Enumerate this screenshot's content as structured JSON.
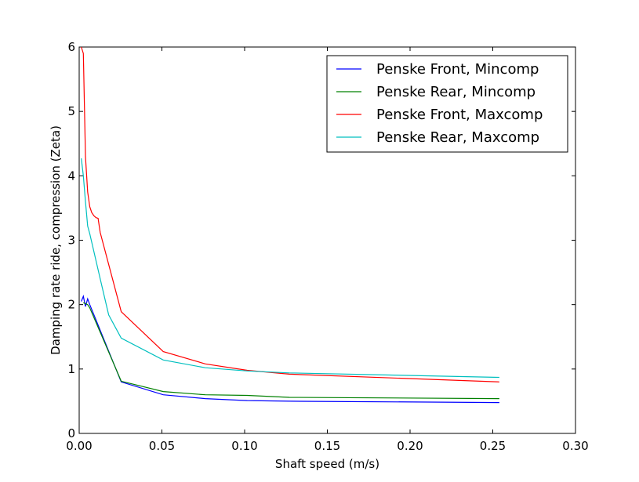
{
  "chart_data": {
    "type": "line",
    "xlabel": "Shaft speed (m/s)",
    "ylabel": "Damping rate ride, compression (Zeta)",
    "xlim": [
      0,
      0.3
    ],
    "ylim": [
      0,
      6
    ],
    "xticks": [
      "0.00",
      "0.05",
      "0.10",
      "0.15",
      "0.20",
      "0.25",
      "0.30"
    ],
    "xtick_values": [
      0,
      0.05,
      0.1,
      0.15,
      0.2,
      0.25,
      0.3
    ],
    "yticks": [
      "0",
      "1",
      "2",
      "3",
      "4",
      "5",
      "6"
    ],
    "ytick_values": [
      0,
      1,
      2,
      3,
      4,
      5,
      6
    ],
    "grid": false,
    "legend_position": "top-right",
    "series": [
      {
        "name": "Penske Front, Mincomp",
        "color": "#0000ff",
        "x": [
          0.0013,
          0.0025,
          0.0038,
          0.0051,
          0.0064,
          0.0254,
          0.0508,
          0.0762,
          0.1016,
          0.127,
          0.254
        ],
        "y": [
          2.05,
          2.13,
          1.97,
          2.09,
          2.0,
          0.8,
          0.6,
          0.54,
          0.51,
          0.5,
          0.48
        ]
      },
      {
        "name": "Penske Rear, Mincomp",
        "color": "#008000",
        "x": [
          0.0025,
          0.0051,
          0.0064,
          0.0254,
          0.0508,
          0.0762,
          0.1016,
          0.127,
          0.254
        ],
        "y": [
          2.03,
          2.0,
          1.95,
          0.81,
          0.65,
          0.6,
          0.59,
          0.56,
          0.54
        ]
      },
      {
        "name": "Penske Front, Maxcomp",
        "color": "#ff0000",
        "x": [
          0.0013,
          0.0025,
          0.0038,
          0.0051,
          0.0064,
          0.0076,
          0.0089,
          0.0102,
          0.0114,
          0.0127,
          0.0254,
          0.0508,
          0.0762,
          0.1016,
          0.127,
          0.254
        ],
        "y": [
          6.0,
          5.9,
          4.3,
          3.75,
          3.52,
          3.43,
          3.38,
          3.35,
          3.34,
          3.12,
          1.89,
          1.27,
          1.08,
          0.98,
          0.92,
          0.8
        ]
      },
      {
        "name": "Penske Rear, Maxcomp",
        "color": "#00bfbf",
        "x": [
          0.0013,
          0.0025,
          0.0038,
          0.0051,
          0.0064,
          0.0127,
          0.0178,
          0.0254,
          0.0508,
          0.0762,
          0.1016,
          0.127,
          0.254
        ],
        "y": [
          4.27,
          4.0,
          3.6,
          3.22,
          3.1,
          2.4,
          1.84,
          1.48,
          1.14,
          1.02,
          0.97,
          0.94,
          0.87
        ]
      }
    ]
  }
}
